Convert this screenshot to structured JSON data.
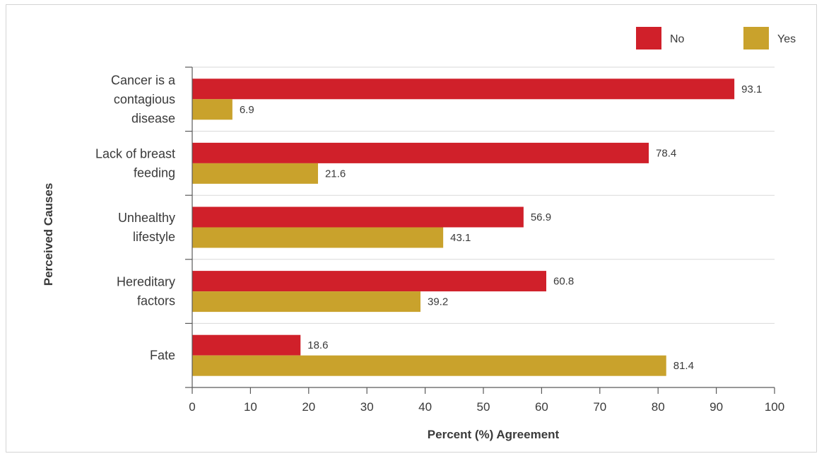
{
  "chart_data": {
    "type": "bar",
    "orientation": "horizontal",
    "title": "",
    "xlabel": "Percent (%) Agreement",
    "ylabel": "Perceived Causes",
    "xlim": [
      0,
      100
    ],
    "xticks": [
      0,
      10,
      20,
      30,
      40,
      50,
      60,
      70,
      80,
      90,
      100
    ],
    "grid": true,
    "legend_position": "top-right",
    "categories": [
      [
        "Cancer is a",
        "contagious",
        "disease"
      ],
      [
        "Lack of breast",
        "feeding"
      ],
      [
        "Unhealthy",
        "lifestyle"
      ],
      [
        "Hereditary",
        "factors"
      ],
      [
        "Fate"
      ]
    ],
    "series": [
      {
        "name": "No",
        "color": "#d0202a",
        "values": [
          93.1,
          78.4,
          56.9,
          60.8,
          18.6
        ],
        "labels": [
          "93.1",
          "78.4",
          "56.9",
          "60.8",
          "18.6"
        ]
      },
      {
        "name": "Yes",
        "color": "#c9a22c",
        "values": [
          6.9,
          21.6,
          43.1,
          39.2,
          81.4
        ],
        "labels": [
          "6.9",
          "21.6",
          "43.1",
          "39.2",
          "81.4"
        ]
      }
    ]
  }
}
